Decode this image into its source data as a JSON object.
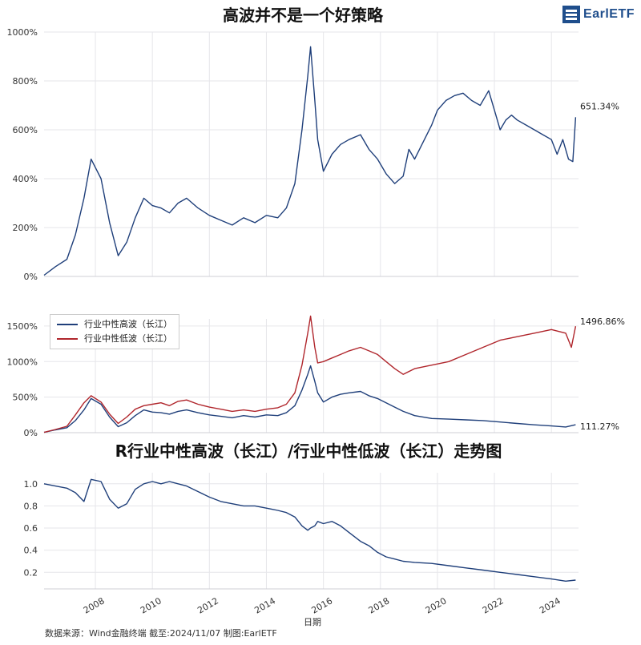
{
  "brand": {
    "logo_text": "EarlETF"
  },
  "colors": {
    "high": "#1f3f7a",
    "low": "#b0262c"
  },
  "footer": {
    "text": "数据来源：Wind金融终端 截至:2024/11/07 制图:EarlETF"
  },
  "x_axis_label": "日期",
  "chart_data": [
    {
      "type": "line",
      "title": "高波并不是一个好策略",
      "ylim": [
        0,
        1000
      ],
      "yticks": [
        "0%",
        "200%",
        "400%",
        "600%",
        "800%",
        "1000%"
      ],
      "end_label": "651.34%",
      "series": [
        {
          "key": "high",
          "x": [
            2006.2,
            2006.6,
            2007.0,
            2007.3,
            2007.6,
            2007.85,
            2008.2,
            2008.5,
            2008.8,
            2009.1,
            2009.4,
            2009.7,
            2010.0,
            2010.3,
            2010.6,
            2010.9,
            2011.2,
            2011.6,
            2012.0,
            2012.4,
            2012.8,
            2013.2,
            2013.6,
            2014.0,
            2014.4,
            2014.7,
            2015.0,
            2015.25,
            2015.45,
            2015.55,
            2015.7,
            2015.8,
            2016.0,
            2016.3,
            2016.6,
            2016.9,
            2017.3,
            2017.6,
            2017.9,
            2018.2,
            2018.5,
            2018.8,
            2019.0,
            2019.2,
            2019.5,
            2019.8,
            2020.0,
            2020.3,
            2020.6,
            2020.9,
            2021.2,
            2021.5,
            2021.8,
            2022.0,
            2022.2,
            2022.4,
            2022.6,
            2022.8,
            2023.1,
            2023.4,
            2023.7,
            2024.0,
            2024.2,
            2024.4,
            2024.6,
            2024.75,
            2024.85
          ],
          "values": [
            5,
            40,
            70,
            170,
            320,
            480,
            400,
            220,
            85,
            140,
            240,
            320,
            290,
            280,
            260,
            300,
            320,
            280,
            250,
            230,
            210,
            240,
            220,
            250,
            240,
            280,
            380,
            600,
            820,
            940,
            720,
            560,
            430,
            500,
            540,
            560,
            580,
            520,
            480,
            420,
            380,
            410,
            520,
            480,
            550,
            620,
            680,
            720,
            740,
            750,
            720,
            700,
            760,
            680,
            600,
            640,
            660,
            640,
            620,
            600,
            580,
            560,
            500,
            560,
            480,
            470,
            651.34
          ]
        }
      ]
    },
    {
      "type": "line",
      "title": "",
      "ylim": [
        0,
        1600
      ],
      "yticks": [
        "0%",
        "500%",
        "1000%",
        "1500%"
      ],
      "legend": [
        "行业中性高波（长江）",
        "行业中性低波（长江）"
      ],
      "end_labels": [
        "1496.86%",
        "111.27%"
      ],
      "series": [
        {
          "key": "high",
          "x": [
            2006.2,
            2006.6,
            2007.0,
            2007.3,
            2007.6,
            2007.85,
            2008.2,
            2008.5,
            2008.8,
            2009.1,
            2009.4,
            2009.7,
            2010.0,
            2010.3,
            2010.6,
            2010.9,
            2011.2,
            2011.6,
            2012.0,
            2012.4,
            2012.8,
            2013.2,
            2013.6,
            2014.0,
            2014.4,
            2014.7,
            2015.0,
            2015.25,
            2015.45,
            2015.55,
            2015.7,
            2015.8,
            2016.0,
            2016.3,
            2016.6,
            2016.9,
            2017.3,
            2017.6,
            2017.9,
            2018.2,
            2018.5,
            2018.8,
            2019.2,
            2019.8,
            2020.4,
            2021.0,
            2021.6,
            2022.2,
            2022.8,
            2023.4,
            2024.0,
            2024.5,
            2024.85
          ],
          "values": [
            5,
            40,
            70,
            170,
            320,
            480,
            400,
            220,
            85,
            140,
            240,
            320,
            290,
            280,
            260,
            300,
            320,
            280,
            250,
            230,
            210,
            240,
            220,
            250,
            240,
            280,
            380,
            600,
            820,
            940,
            720,
            560,
            430,
            500,
            540,
            560,
            580,
            520,
            480,
            420,
            360,
            300,
            240,
            200,
            190,
            180,
            170,
            150,
            130,
            110,
            95,
            80,
            111.27
          ]
        },
        {
          "key": "low",
          "x": [
            2006.2,
            2006.6,
            2007.0,
            2007.3,
            2007.6,
            2007.85,
            2008.2,
            2008.5,
            2008.8,
            2009.1,
            2009.4,
            2009.7,
            2010.0,
            2010.3,
            2010.6,
            2010.9,
            2011.2,
            2011.6,
            2012.0,
            2012.4,
            2012.8,
            2013.2,
            2013.6,
            2014.0,
            2014.4,
            2014.7,
            2015.0,
            2015.25,
            2015.45,
            2015.55,
            2015.7,
            2015.8,
            2016.0,
            2016.3,
            2016.6,
            2016.9,
            2017.3,
            2017.6,
            2017.9,
            2018.2,
            2018.5,
            2018.8,
            2019.2,
            2019.8,
            2020.4,
            2021.0,
            2021.6,
            2022.2,
            2022.8,
            2023.4,
            2024.0,
            2024.5,
            2024.7,
            2024.85
          ],
          "values": [
            5,
            45,
            90,
            250,
            420,
            520,
            430,
            260,
            130,
            220,
            330,
            380,
            400,
            420,
            380,
            440,
            460,
            400,
            360,
            330,
            300,
            320,
            300,
            330,
            350,
            400,
            560,
            950,
            1400,
            1640,
            1200,
            980,
            1000,
            1050,
            1100,
            1150,
            1200,
            1150,
            1100,
            1000,
            900,
            820,
            900,
            950,
            1000,
            1100,
            1200,
            1300,
            1350,
            1400,
            1450,
            1400,
            1200,
            1496.86
          ]
        }
      ]
    },
    {
      "type": "line",
      "title": "R行业中性高波（长江）/行业中性低波（长江）走势图",
      "ylim": [
        0.05,
        1.1
      ],
      "yticks": [
        "0.2",
        "0.4",
        "0.6",
        "0.8",
        "1.0"
      ],
      "xticks": [
        "2008",
        "2010",
        "2012",
        "2014",
        "2016",
        "2018",
        "2020",
        "2022",
        "2024"
      ],
      "xlabel": "日期",
      "series": [
        {
          "key": "high",
          "x": [
            2006.2,
            2006.6,
            2007.0,
            2007.3,
            2007.6,
            2007.85,
            2008.2,
            2008.5,
            2008.8,
            2009.1,
            2009.4,
            2009.7,
            2010.0,
            2010.3,
            2010.6,
            2010.9,
            2011.2,
            2011.6,
            2012.0,
            2012.4,
            2012.8,
            2013.2,
            2013.6,
            2014.0,
            2014.4,
            2014.7,
            2015.0,
            2015.25,
            2015.45,
            2015.55,
            2015.7,
            2015.8,
            2016.0,
            2016.3,
            2016.6,
            2016.9,
            2017.3,
            2017.6,
            2017.9,
            2018.2,
            2018.5,
            2018.8,
            2019.2,
            2019.8,
            2020.4,
            2021.0,
            2021.6,
            2022.2,
            2022.8,
            2023.4,
            2024.0,
            2024.5,
            2024.85
          ],
          "values": [
            1.0,
            0.98,
            0.96,
            0.92,
            0.84,
            1.04,
            1.02,
            0.86,
            0.78,
            0.82,
            0.95,
            1.0,
            1.02,
            1.0,
            1.02,
            1.0,
            0.98,
            0.93,
            0.88,
            0.84,
            0.82,
            0.8,
            0.8,
            0.78,
            0.76,
            0.74,
            0.7,
            0.62,
            0.58,
            0.6,
            0.62,
            0.66,
            0.64,
            0.66,
            0.62,
            0.56,
            0.48,
            0.44,
            0.38,
            0.34,
            0.32,
            0.3,
            0.29,
            0.28,
            0.26,
            0.24,
            0.22,
            0.2,
            0.18,
            0.16,
            0.14,
            0.12,
            0.13
          ]
        }
      ]
    }
  ]
}
